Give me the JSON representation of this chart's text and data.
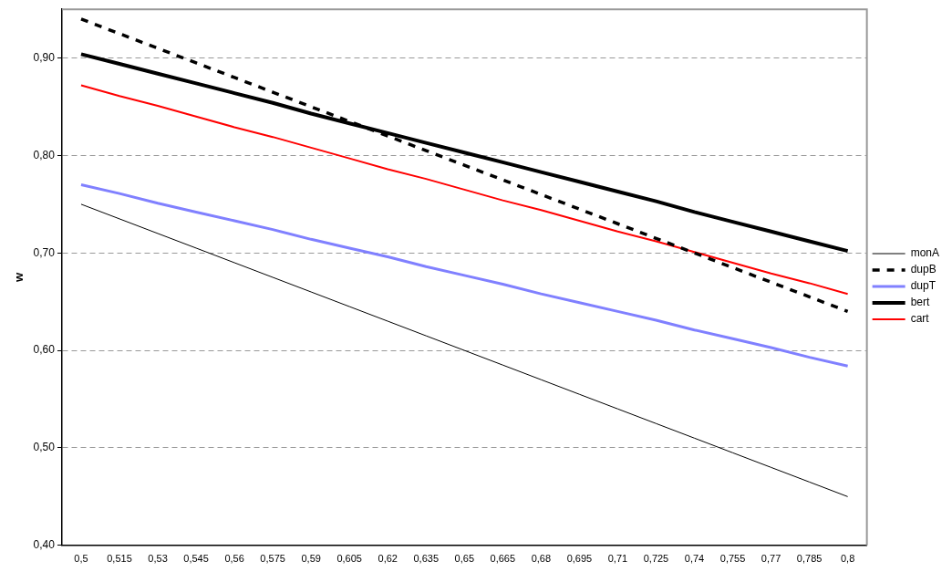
{
  "chart_data": {
    "type": "line",
    "ylabel": "w",
    "categories": [
      "0,5",
      "0,515",
      "0,53",
      "0,545",
      "0,56",
      "0,575",
      "0,59",
      "0,605",
      "0,62",
      "0,635",
      "0,65",
      "0,665",
      "0,68",
      "0,695",
      "0,71",
      "0,725",
      "0,74",
      "0,755",
      "0,77",
      "0,785",
      "0,8"
    ],
    "series": [
      {
        "name": "monA",
        "color": "#000000",
        "values": [
          0.75,
          0.735,
          0.72,
          0.705,
          0.69,
          0.675,
          0.66,
          0.645,
          0.63,
          0.615,
          0.6,
          0.585,
          0.57,
          0.555,
          0.54,
          0.525,
          0.51,
          0.495,
          0.48,
          0.465,
          0.45
        ]
      },
      {
        "name": "dupB",
        "color": "#000000",
        "line_style": "dashed",
        "values": [
          0.94,
          0.925,
          0.91,
          0.895,
          0.88,
          0.865,
          0.85,
          0.835,
          0.82,
          0.805,
          0.79,
          0.775,
          0.76,
          0.745,
          0.73,
          0.715,
          0.7,
          0.685,
          0.67,
          0.655,
          0.64
        ]
      },
      {
        "name": "dupT",
        "color": "#8080ff",
        "values": [
          0.77,
          0.761,
          0.751,
          0.742,
          0.733,
          0.724,
          0.714,
          0.705,
          0.696,
          0.686,
          0.677,
          0.668,
          0.658,
          0.649,
          0.64,
          0.631,
          0.621,
          0.612,
          0.603,
          0.593,
          0.584
        ]
      },
      {
        "name": "bert",
        "color": "#000000",
        "values": [
          0.904,
          0.894,
          0.884,
          0.874,
          0.864,
          0.854,
          0.843,
          0.833,
          0.823,
          0.813,
          0.803,
          0.793,
          0.783,
          0.773,
          0.763,
          0.753,
          0.742,
          0.732,
          0.722,
          0.712,
          0.702
        ]
      },
      {
        "name": "cart",
        "color": "#ff0000",
        "values": [
          0.872,
          0.861,
          0.851,
          0.84,
          0.829,
          0.819,
          0.808,
          0.797,
          0.786,
          0.776,
          0.765,
          0.754,
          0.744,
          0.733,
          0.722,
          0.712,
          0.701,
          0.69,
          0.679,
          0.669,
          0.658
        ]
      }
    ],
    "ylim": [
      0.4,
      0.95
    ],
    "yticks": [
      {
        "value": 0.4,
        "label": "0,40"
      },
      {
        "value": 0.5,
        "label": "0,50"
      },
      {
        "value": 0.6,
        "label": "0,60"
      },
      {
        "value": 0.7,
        "label": "0,70"
      },
      {
        "value": 0.8,
        "label": "0,80"
      },
      {
        "value": 0.9,
        "label": "0,90"
      }
    ],
    "grid": "y",
    "legend": "right",
    "marker": "none",
    "line_style": "solid"
  }
}
